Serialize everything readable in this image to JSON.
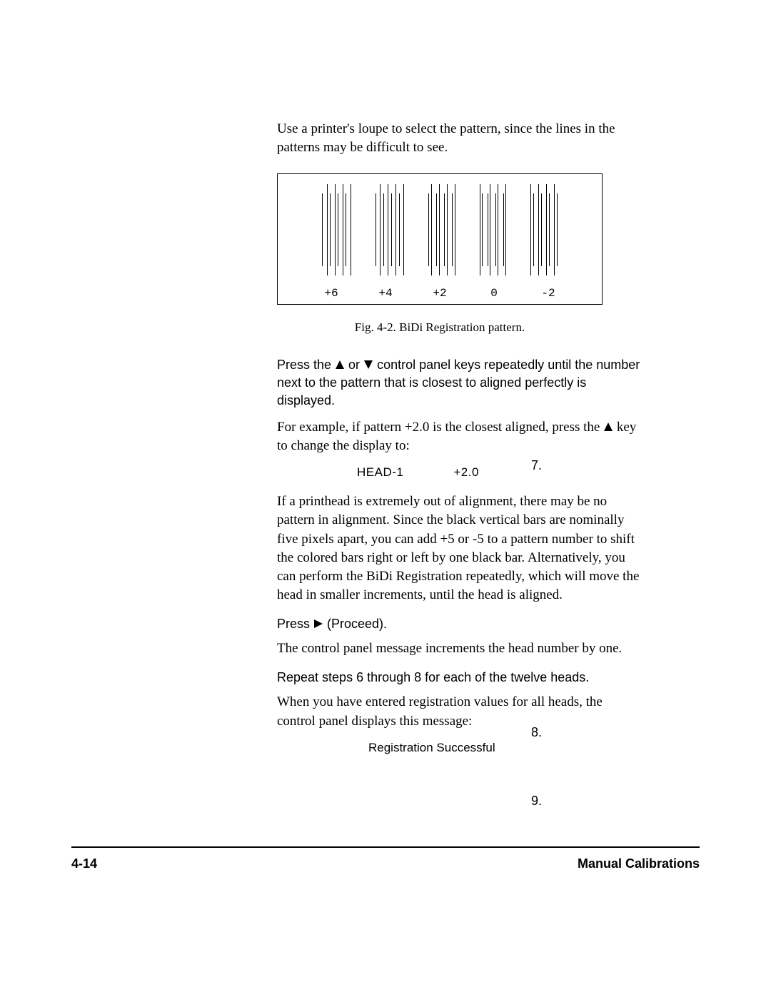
{
  "intro": "Use a printer's loupe to select the pattern, since the lines in the patterns may be difficult to see.",
  "figure": {
    "labels": [
      "+6",
      "+4",
      "+2",
      "0",
      "-2"
    ],
    "caption": "Fig. 4-2. BiDi Registration pattern.",
    "patterns": [
      {
        "bars": [
          "s",
          "f",
          "s",
          "f",
          "s",
          "f",
          "s",
          "f"
        ],
        "gaps": [
          6,
          3,
          6,
          3,
          6,
          3,
          6
        ]
      },
      {
        "bars": [
          "s",
          "f",
          "s",
          "f",
          "s",
          "f",
          "s",
          "f"
        ],
        "gaps": [
          5,
          4,
          5,
          4,
          5,
          4,
          5
        ]
      },
      {
        "bars": [
          "s",
          "f",
          "s",
          "f",
          "s",
          "f",
          "s",
          "f"
        ],
        "gaps": [
          3,
          6,
          3,
          6,
          3,
          6,
          3
        ]
      },
      {
        "bars": [
          "f",
          "s",
          "s",
          "f",
          "s",
          "f",
          "s",
          "f"
        ],
        "gaps": [
          2,
          7,
          2,
          7,
          2,
          7,
          2
        ]
      },
      {
        "bars": [
          "f",
          "s",
          "f",
          "s",
          "f",
          "s",
          "f",
          "s"
        ],
        "gaps": [
          3,
          6,
          3,
          6,
          3,
          6,
          3
        ]
      }
    ]
  },
  "step7": {
    "num": "7.",
    "text_a": "Press the ",
    "text_b": " or ",
    "text_c": " control panel keys repeatedly until the number next to the pattern that is closest to aligned perfectly is displayed.",
    "example_a": "For example, if pattern +2.0 is the closest aligned, press the ",
    "example_b": " key to change the display to:",
    "display_head": "HEAD-1",
    "display_val": "+2.0",
    "longpara": "If a printhead is extremely out of alignment, there may be no pattern in alignment. Since the black vertical bars are nominally five pixels apart, you can add +5 or -5 to a pattern number to shift the colored bars right or left by one black bar. Alternatively, you can perform the BiDi Registration repeatedly, which will move the head in smaller increments, until the head is aligned."
  },
  "step8": {
    "num": "8.",
    "text_a": "Press ",
    "text_b": " (Proceed).",
    "after": "The control panel message increments the head number by one."
  },
  "step9": {
    "num": "9.",
    "text": "Repeat steps 6 through 8 for each of the twelve heads.",
    "after": "When you have entered registration values for all heads, the control panel displays this message:",
    "msg": "Registration Successful"
  },
  "footer": {
    "page": "4-14",
    "title": "Manual Calibrations"
  }
}
